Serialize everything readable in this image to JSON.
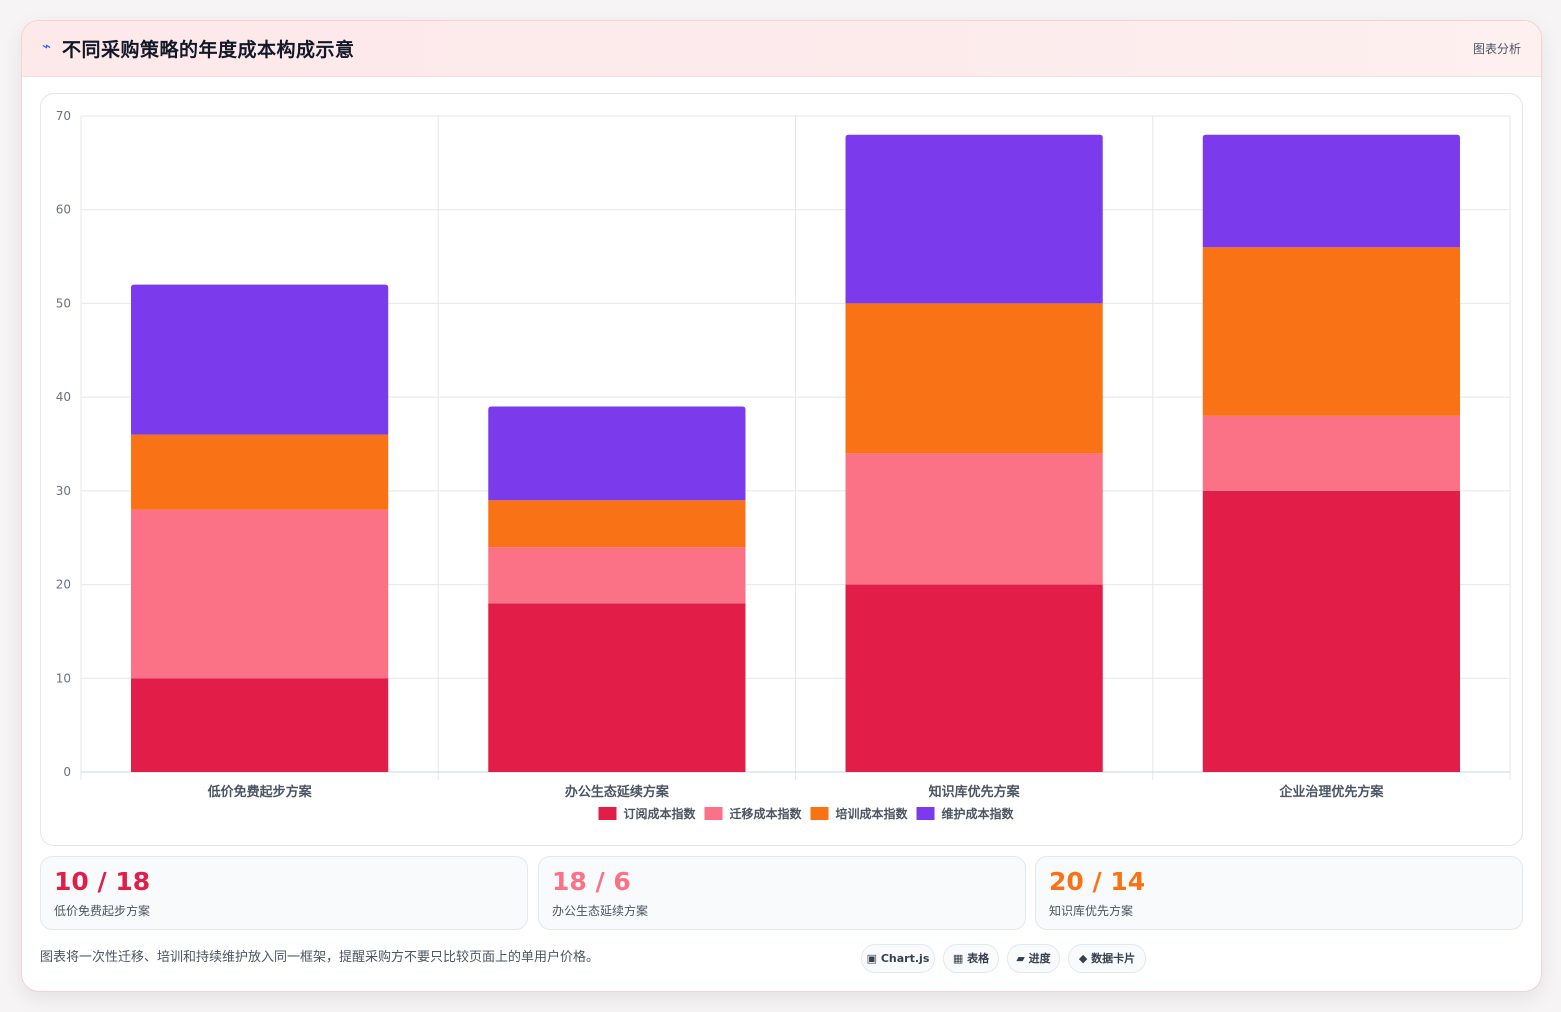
{
  "header": {
    "icon": "lightning-icon",
    "title": "不同采购策略的年度成本构成示意",
    "link_label": "图表分析"
  },
  "chart_data": {
    "type": "bar",
    "stacked": true,
    "categories": [
      "低价免费起步方案",
      "办公生态延续方案",
      "知识库优先方案",
      "企业治理优先方案"
    ],
    "series": [
      {
        "name": "订阅成本指数",
        "color": "#e11d48",
        "values": [
          10,
          18,
          20,
          30
        ]
      },
      {
        "name": "迁移成本指数",
        "color": "#fb7185",
        "values": [
          18,
          6,
          14,
          8
        ]
      },
      {
        "name": "培训成本指数",
        "color": "#f97316",
        "values": [
          8,
          5,
          16,
          18
        ]
      },
      {
        "name": "维护成本指数",
        "color": "#7c3aed",
        "values": [
          16,
          10,
          18,
          12
        ]
      }
    ],
    "ylim": [
      0,
      70
    ],
    "yticks": [
      0,
      10,
      20,
      30,
      40,
      50,
      60,
      70
    ],
    "grid": true,
    "legend_position": "bottom"
  },
  "stats": [
    {
      "value": "10 / 18",
      "label": "低价免费起步方案",
      "color": "#e11d48"
    },
    {
      "value": "18 / 6",
      "label": "办公生态延续方案",
      "color": "#fb7185"
    },
    {
      "value": "20 / 14",
      "label": "知识库优先方案",
      "color": "#f97316"
    }
  ],
  "footnote": "图表将一次性迁移、培训和持续维护放入同一框架，提醒采购方不要只比较页面上的单用户价格。",
  "chips": [
    {
      "icon": "chart-icon",
      "glyph": "▣",
      "label": "Chart.js"
    },
    {
      "icon": "table-icon",
      "glyph": "▦",
      "label": "表格"
    },
    {
      "icon": "progress-icon",
      "glyph": "▰",
      "label": "进度"
    },
    {
      "icon": "diamond-icon",
      "glyph": "◆",
      "label": "数据卡片"
    }
  ]
}
